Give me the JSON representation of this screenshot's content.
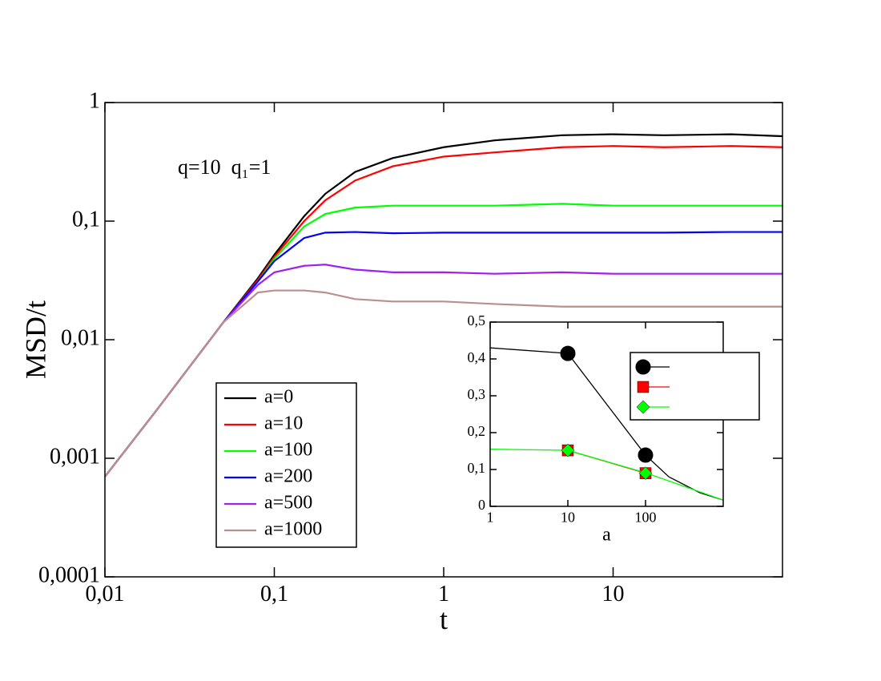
{
  "chart_data": [
    {
      "type": "line",
      "xlabel": "t",
      "ylabel": "MSD/t",
      "annotation": "q=10  q₁=1",
      "xscale": "log",
      "yscale": "log",
      "legend": "lower left",
      "xlim": [
        0.01,
        100
      ],
      "ylim": [
        0.0001,
        1
      ],
      "xticks": [
        {
          "value": 0.01,
          "label": "0,01"
        },
        {
          "value": 0.1,
          "label": "0,1"
        },
        1,
        10
      ],
      "yticks": [
        {
          "value": 0.0001,
          "label": "0,0001"
        },
        {
          "value": 0.001,
          "label": "0,001"
        },
        {
          "value": 0.01,
          "label": "0,01"
        },
        {
          "value": 0.1,
          "label": "0,1"
        },
        1
      ],
      "x": [
        0.01,
        0.02,
        0.05,
        0.08,
        0.1,
        0.15,
        0.2,
        0.3,
        0.5,
        1,
        2,
        5,
        10,
        20,
        50,
        100
      ],
      "series": [
        {
          "name": "a=0",
          "color": "#000000",
          "values": [
            0.0007,
            0.0025,
            0.014,
            0.033,
            0.052,
            0.11,
            0.17,
            0.26,
            0.34,
            0.42,
            0.48,
            0.53,
            0.54,
            0.53,
            0.54,
            0.52
          ]
        },
        {
          "name": "a=10",
          "color": "#ff0000",
          "values": [
            0.0007,
            0.0025,
            0.014,
            0.032,
            0.05,
            0.1,
            0.15,
            0.22,
            0.29,
            0.35,
            0.38,
            0.42,
            0.43,
            0.42,
            0.43,
            0.42
          ]
        },
        {
          "name": "a=100",
          "color": "#00ff00",
          "values": [
            0.0007,
            0.0025,
            0.014,
            0.031,
            0.048,
            0.09,
            0.115,
            0.13,
            0.135,
            0.135,
            0.135,
            0.14,
            0.135,
            0.135,
            0.135,
            0.135
          ]
        },
        {
          "name": "a=200",
          "color": "#0000ff",
          "values": [
            0.0007,
            0.0025,
            0.014,
            0.031,
            0.046,
            0.072,
            0.08,
            0.081,
            0.079,
            0.08,
            0.08,
            0.08,
            0.08,
            0.08,
            0.081,
            0.081
          ]
        },
        {
          "name": "a=500",
          "color": "#a020f0",
          "values": [
            0.0007,
            0.0025,
            0.014,
            0.029,
            0.037,
            0.042,
            0.043,
            0.039,
            0.037,
            0.037,
            0.036,
            0.037,
            0.036,
            0.036,
            0.036,
            0.036
          ]
        },
        {
          "name": "a=1000",
          "color": "#bc8f8f",
          "values": [
            0.0007,
            0.0025,
            0.014,
            0.025,
            0.026,
            0.026,
            0.025,
            0.022,
            0.021,
            0.021,
            0.02,
            0.019,
            0.019,
            0.019,
            0.019,
            0.019
          ]
        }
      ]
    },
    {
      "type": "line",
      "xlabel": "a",
      "xscale": "log",
      "yscale": "linear",
      "legend": "upper right",
      "xlim": [
        1,
        1000
      ],
      "ylim": [
        0,
        0.5
      ],
      "xticks": [
        1,
        10,
        100
      ],
      "yticks": [
        0,
        {
          "value": 0.1,
          "label": "0,1"
        },
        {
          "value": 0.2,
          "label": "0,2"
        },
        {
          "value": 0.3,
          "label": "0,3"
        },
        {
          "value": 0.4,
          "label": "0,4"
        },
        {
          "value": 0.5,
          "label": "0,5"
        }
      ],
      "series": [
        {
          "color": "#000000",
          "marker": "circle",
          "x": [
            1,
            10,
            100,
            200,
            500,
            1000
          ],
          "values": [
            0.43,
            0.415,
            0.139,
            0.08,
            0.037,
            0.017
          ],
          "marker_x": [
            10,
            100
          ],
          "marker_values": [
            0.415,
            0.139
          ]
        },
        {
          "color": "#ff0000",
          "marker": "square",
          "x": [
            10,
            100
          ],
          "values": [
            0.152,
            0.09
          ],
          "marker_x": [
            10,
            100
          ],
          "marker_values": [
            0.152,
            0.09
          ]
        },
        {
          "color": "#00ff00",
          "marker": "diamond",
          "x": [
            1,
            10,
            100,
            1000
          ],
          "values": [
            0.155,
            0.152,
            0.091,
            0.017
          ],
          "marker_x": [
            10,
            100
          ],
          "marker_values": [
            0.152,
            0.09
          ]
        }
      ]
    }
  ]
}
